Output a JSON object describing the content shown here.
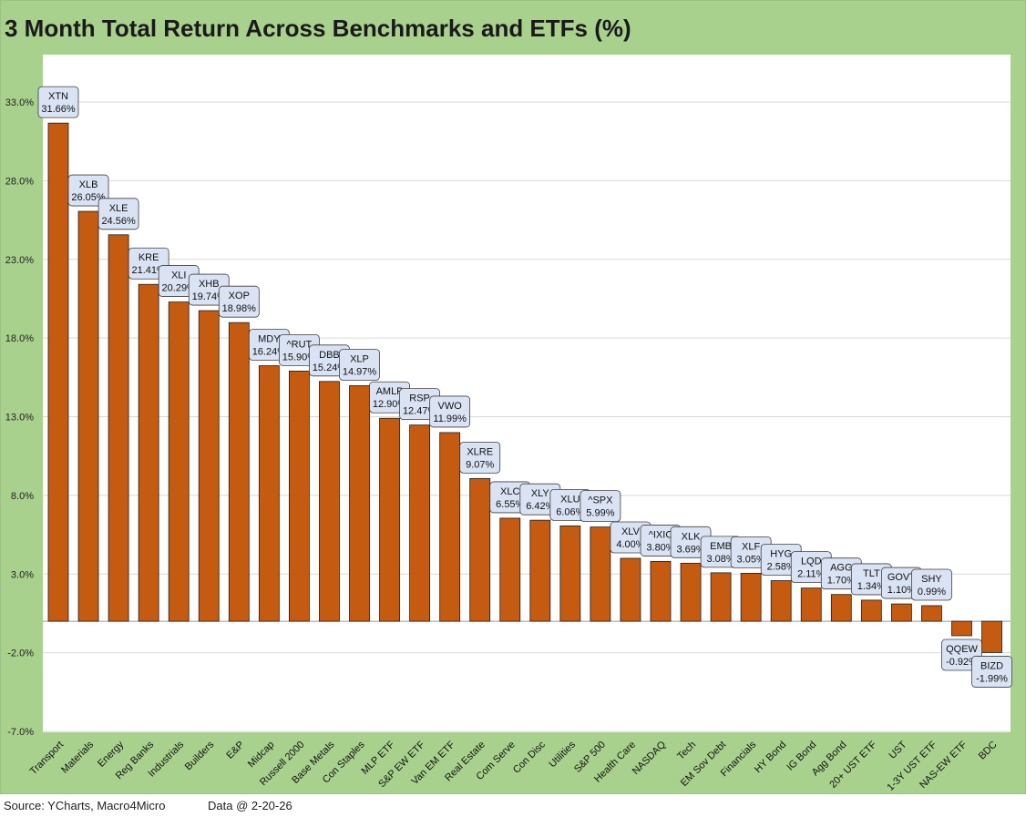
{
  "title": "3 Month Total Return Across Benchmarks and ETFs (%)",
  "source": "Source: YCharts, Macro4Micro",
  "data_date": "Data @ 2-20-26",
  "colors": {
    "bar": "#c55a11",
    "frame": "#a9d18e",
    "plot_bg": "#ffffff",
    "label_bg": "#dae3f3",
    "grid": "#d9d9d9"
  },
  "chart_data": {
    "type": "bar",
    "title": "3 Month Total Return Across Benchmarks and ETFs (%)",
    "xlabel": "",
    "ylabel": "",
    "ylim": [
      -7,
      35
    ],
    "yticks": [
      33,
      28,
      23,
      18,
      13,
      8,
      3,
      -2,
      -7
    ],
    "ytick_labels": [
      "33.0%",
      "28.0%",
      "23.0%",
      "18.0%",
      "13.0%",
      "8.0%",
      "3.0%",
      "-2.0%",
      "-7.0%"
    ],
    "grid": true,
    "categories": [
      "Transport",
      "Materials",
      "Energy",
      "Reg Banks",
      "Industrials",
      "Builders",
      "E&P",
      "Midcap",
      "Russell 2000",
      "Base Metals",
      "Con Staples",
      "MLP ETF",
      "S&P EW ETF",
      "Van EM ETF",
      "Real Estate",
      "Com Serve",
      "Con Disc",
      "Utilities",
      "S&P 500",
      "Health Care",
      "NASDAQ",
      "Tech",
      "EM Sov Debt",
      "Financials",
      "HY Bond",
      "IG Bond",
      "Agg Bond",
      "20+ UST ETF",
      "UST",
      "1-3Y UST ETF",
      "NAS-EW ETF",
      "BDC"
    ],
    "tickers": [
      "XTN",
      "XLB",
      "XLE",
      "KRE",
      "XLI",
      "XHB",
      "XOP",
      "MDY",
      "^RUT",
      "DBB",
      "XLP",
      "AMLP",
      "RSP",
      "VWO",
      "XLRE",
      "XLC",
      "XLY",
      "XLU",
      "^SPX",
      "XLV",
      "^IXIC",
      "XLK",
      "EMB",
      "XLF",
      "HYG",
      "LQD",
      "AGG",
      "TLT",
      "GOVT",
      "SHY",
      "QQEW",
      "BIZD"
    ],
    "values": [
      31.66,
      26.05,
      24.56,
      21.41,
      20.29,
      19.74,
      18.98,
      16.24,
      15.9,
      15.24,
      14.97,
      12.9,
      12.47,
      11.99,
      9.07,
      6.55,
      6.42,
      6.06,
      5.99,
      4.0,
      3.8,
      3.69,
      3.08,
      3.05,
      2.58,
      2.11,
      1.7,
      1.34,
      1.1,
      0.99,
      -0.92,
      -1.99
    ],
    "value_labels": [
      "31.66%",
      "26.05%",
      "24.56%",
      "21.41%",
      "20.29%",
      "19.74%",
      "18.98%",
      "16.24%",
      "15.90%",
      "15.24%",
      "14.97%",
      "12.90%",
      "12.47%",
      "11.99%",
      "9.07%",
      "6.55%",
      "6.42%",
      "6.06%",
      "5.99%",
      "4.00%",
      "3.80%",
      "3.69%",
      "3.08%",
      "3.05%",
      "2.58%",
      "2.11%",
      "1.70%",
      "1.34%",
      "1.10%",
      "0.99%",
      "-0.92%",
      "-1.99%"
    ]
  }
}
